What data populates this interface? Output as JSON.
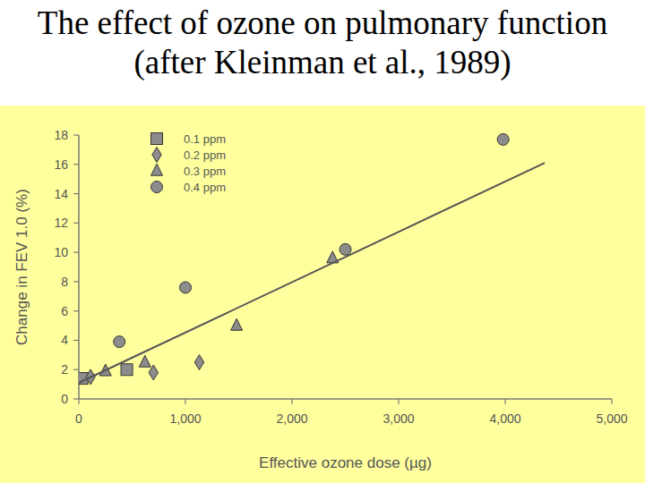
{
  "chart_data": {
    "type": "scatter",
    "title": "The effect of ozone on pulmonary function (after Kleinman et al., 1989)",
    "x_label": "Effective ozone dose (µg)",
    "y_label": "Change in FEV 1.0 (%)",
    "xlim": [
      0,
      5000
    ],
    "ylim": [
      0,
      18
    ],
    "xticks": [
      0,
      {
        "value": 1000,
        "label": "1,000"
      },
      {
        "value": 2000,
        "label": "2,000"
      },
      {
        "value": 3000,
        "label": "3,000"
      },
      {
        "value": 4000,
        "label": "4,000"
      },
      {
        "value": 5000,
        "label": "5,000"
      }
    ],
    "yticks": [
      0,
      2,
      4,
      6,
      8,
      10,
      12,
      14,
      16,
      18
    ],
    "grid": false,
    "legend": "upper left",
    "series": [
      {
        "name": "0.1 ppm",
        "marker": "square",
        "color": "#8c8c8c",
        "x": [
          30,
          450
        ],
        "values": [
          1.4,
          2.0
        ]
      },
      {
        "name": "0.2 ppm",
        "marker": "diamond",
        "color": "#8c8c8c",
        "x": [
          110,
          700,
          1130
        ],
        "values": [
          1.5,
          1.8,
          2.5
        ]
      },
      {
        "name": "0.3 ppm",
        "marker": "triangle",
        "color": "#8c8c8c",
        "x": [
          250,
          620,
          1480,
          2380
        ],
        "values": [
          1.9,
          2.5,
          5.0,
          9.6
        ]
      },
      {
        "name": "0.4 ppm",
        "marker": "circle",
        "color": "#8c8c8c",
        "x": [
          380,
          1000,
          2500,
          3980
        ],
        "values": [
          3.9,
          7.6,
          10.2,
          17.7
        ]
      },
      {
        "type": "line",
        "color": "#555555",
        "x": [
          0,
          4370
        ],
        "values": [
          1.1,
          16.1
        ]
      }
    ]
  }
}
